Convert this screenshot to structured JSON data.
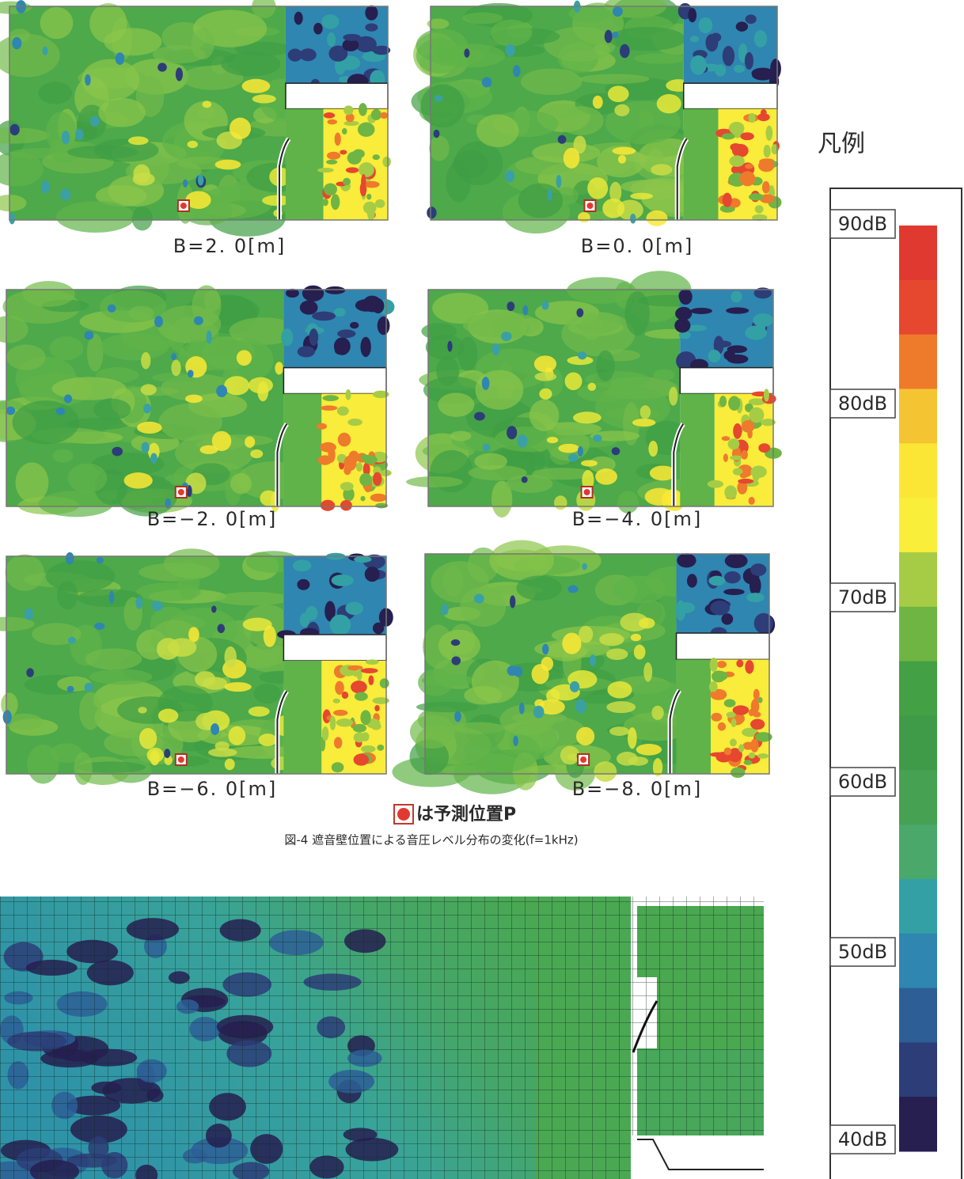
{
  "figure": {
    "panels": [
      {
        "label": "B=2. 0[m]"
      },
      {
        "label": "B=0. 0[m]"
      },
      {
        "label": "B=−2. 0[m]"
      },
      {
        "label": "B=−4. 0[m]"
      },
      {
        "label": "B=−6. 0[m]"
      },
      {
        "label": "B=−8. 0[m]"
      }
    ],
    "marker_note": "は予測位置P",
    "caption": "図-4 遮音壁位置による音圧レベル分布の変化(f=1kHz)"
  },
  "legend": {
    "title": "凡例",
    "labels": [
      "90dB",
      "80dB",
      "70dB",
      "60dB",
      "50dB",
      "40dB"
    ],
    "colors": [
      "#e0392f",
      "#e6472f",
      "#ee7a2c",
      "#f5c432",
      "#fbe635",
      "#f9ef3a",
      "#a6cc45",
      "#6fb544",
      "#44a044",
      "#3f9b47",
      "#46a153",
      "#4aa86a",
      "#33a0a6",
      "#2f86b0",
      "#2d5f96",
      "#2d3d78",
      "#261f50"
    ]
  }
}
